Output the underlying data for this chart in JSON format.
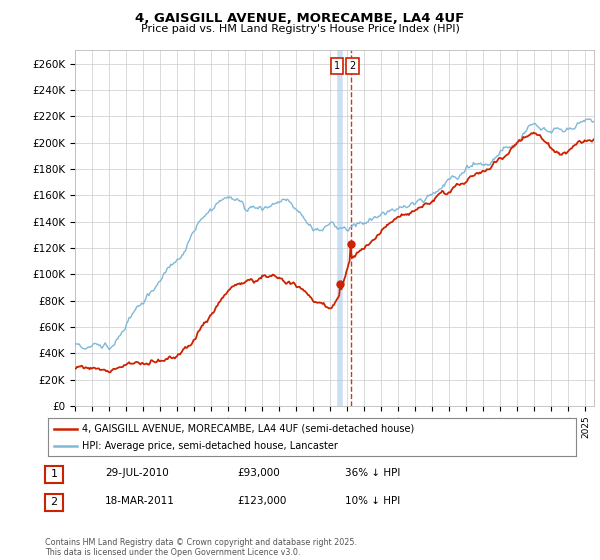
{
  "title": "4, GAISGILL AVENUE, MORECAMBE, LA4 4UF",
  "subtitle": "Price paid vs. HM Land Registry's House Price Index (HPI)",
  "ylabel_ticks": [
    "£0",
    "£20K",
    "£40K",
    "£60K",
    "£80K",
    "£100K",
    "£120K",
    "£140K",
    "£160K",
    "£180K",
    "£200K",
    "£220K",
    "£240K",
    "£260K"
  ],
  "ytick_values": [
    0,
    20000,
    40000,
    60000,
    80000,
    100000,
    120000,
    140000,
    160000,
    180000,
    200000,
    220000,
    240000,
    260000
  ],
  "ylim": [
    0,
    270000
  ],
  "hpi_color": "#7fb8d8",
  "price_color": "#cc2200",
  "vline1_color": "#aaccee",
  "vline2_color": "#cc2200",
  "legend_label_red": "4, GAISGILL AVENUE, MORECAMBE, LA4 4UF (semi-detached house)",
  "legend_label_blue": "HPI: Average price, semi-detached house, Lancaster",
  "transactions": [
    {
      "num": "1",
      "date": "29-JUL-2010",
      "price": "£93,000",
      "hpi": "36% ↓ HPI"
    },
    {
      "num": "2",
      "date": "18-MAR-2011",
      "price": "£123,000",
      "hpi": "10% ↓ HPI"
    }
  ],
  "sale1_year": 2010.57,
  "sale1_price": 93000,
  "sale2_year": 2011.21,
  "sale2_price": 123000,
  "copyright": "Contains HM Land Registry data © Crown copyright and database right 2025.\nThis data is licensed under the Open Government Licence v3.0.",
  "background_color": "#ffffff",
  "grid_color": "#cccccc"
}
